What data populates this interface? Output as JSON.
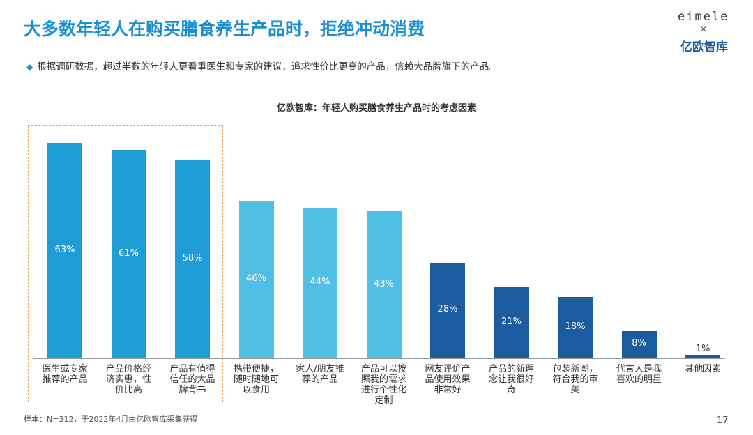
{
  "header": {
    "title": "大多数年轻人在购买膳食养生产品时，拒绝冲动消费",
    "subtitle": "根据调研数据，超过半数的年轻人更看重医生和专家的建议，追求性价比更高的产品，信赖大品牌旗下的产品。"
  },
  "logo": {
    "brand": "eimele",
    "separator": "×",
    "partner": "亿欧智库"
  },
  "chart_data": {
    "type": "bar",
    "title": "亿欧智库：年轻人购买膳食养生产品时的考虑因素",
    "categories": [
      "医生或专家推荐的产品",
      "产品价格经济实惠，性价比高",
      "产品有值得信任的大品牌背书",
      "携带便捷，随时随地可以食用",
      "家人/朋友推荐的产品",
      "产品可以按照我的需求进行个性化定制",
      "网友评价产品使用效果非常好",
      "产品的新理念让我很好奇",
      "包装新潮，符合我的审美",
      "代言人是我喜欢的明星",
      "其他因素"
    ],
    "values": [
      63,
      61,
      58,
      46,
      44,
      43,
      28,
      21,
      18,
      8,
      1
    ],
    "value_labels": [
      "63%",
      "61%",
      "58%",
      "46%",
      "44%",
      "43%",
      "28%",
      "21%",
      "18%",
      "8%",
      "1%"
    ],
    "colors": [
      "#1f9bd6",
      "#1f9bd6",
      "#1f9bd6",
      "#4fbfe3",
      "#4fbfe3",
      "#4fbfe3",
      "#1a5c9e",
      "#1a5c9e",
      "#1a5c9e",
      "#1a5c9e",
      "#1a5c9e"
    ]
  },
  "footer": {
    "note": "样本：N=312，于2022年4月由亿欧智库采集获得",
    "page_number": "17"
  }
}
